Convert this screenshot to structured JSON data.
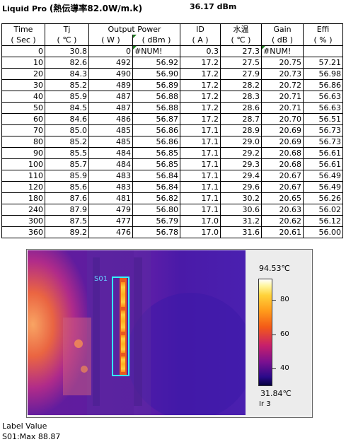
{
  "header": {
    "title_prefix": "Liquid Pro",
    "title_suffix": "(熱伝導率82.0W/m.k)",
    "power_dbm": "36.17 dBm"
  },
  "table": {
    "headers_top": [
      "Time",
      "Tj",
      "Output Power",
      "ID",
      "水温",
      "Gain",
      "Effi"
    ],
    "headers_bottom": [
      "( Sec )",
      "( ℃ )",
      "( W )",
      "( dBm )",
      "( A )",
      "( ℃ )",
      "( dB )",
      "( % )"
    ],
    "rows": [
      [
        "0",
        "30.8",
        "0",
        "#NUM!",
        "0.3",
        "27.3",
        "#NUM!",
        ""
      ],
      [
        "10",
        "82.6",
        "492",
        "56.92",
        "17.2",
        "27.5",
        "20.75",
        "57.21"
      ],
      [
        "20",
        "84.3",
        "490",
        "56.90",
        "17.2",
        "27.9",
        "20.73",
        "56.98"
      ],
      [
        "30",
        "85.2",
        "489",
        "56.89",
        "17.2",
        "28.2",
        "20.72",
        "56.86"
      ],
      [
        "40",
        "85.9",
        "487",
        "56.88",
        "17.2",
        "28.3",
        "20.71",
        "56.63"
      ],
      [
        "50",
        "84.5",
        "487",
        "56.88",
        "17.2",
        "28.6",
        "20.71",
        "56.63"
      ],
      [
        "60",
        "84.6",
        "486",
        "56.87",
        "17.2",
        "28.7",
        "20.70",
        "56.51"
      ],
      [
        "70",
        "85.0",
        "485",
        "56.86",
        "17.1",
        "28.9",
        "20.69",
        "56.73"
      ],
      [
        "80",
        "85.2",
        "485",
        "56.86",
        "17.1",
        "29.0",
        "20.69",
        "56.73"
      ],
      [
        "90",
        "85.5",
        "484",
        "56.85",
        "17.1",
        "29.2",
        "20.68",
        "56.61"
      ],
      [
        "100",
        "85.7",
        "484",
        "56.85",
        "17.1",
        "29.3",
        "20.68",
        "56.61"
      ],
      [
        "110",
        "85.9",
        "483",
        "56.84",
        "17.1",
        "29.4",
        "20.67",
        "56.49"
      ],
      [
        "120",
        "85.6",
        "483",
        "56.84",
        "17.1",
        "29.6",
        "20.67",
        "56.49"
      ],
      [
        "180",
        "87.6",
        "481",
        "56.82",
        "17.1",
        "30.2",
        "20.65",
        "56.26"
      ],
      [
        "240",
        "87.9",
        "479",
        "56.80",
        "17.1",
        "30.6",
        "20.63",
        "56.02"
      ],
      [
        "300",
        "87.5",
        "477",
        "56.79",
        "17.0",
        "31.2",
        "20.62",
        "56.12"
      ],
      [
        "360",
        "89.2",
        "476",
        "56.78",
        "17.0",
        "31.6",
        "20.61",
        "56.00"
      ]
    ]
  },
  "thermal": {
    "spot_label": "S01",
    "max_temp": "94.53℃",
    "min_temp": "31.84℃",
    "emissivity_label": "Ir 3",
    "scale_ticks": [
      "80",
      "60",
      "40"
    ],
    "colors": {
      "box": "#33ffff",
      "spot_label": "#66ccff"
    }
  },
  "measurement": {
    "header": "Label  Value",
    "row": "S01:Max   88.87"
  }
}
